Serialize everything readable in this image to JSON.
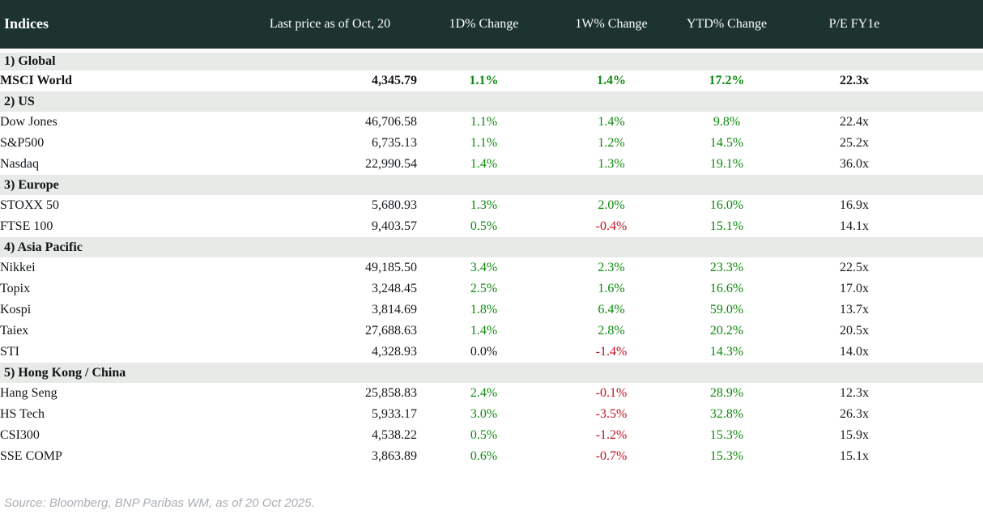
{
  "table": {
    "columns": [
      "Indices",
      "Last price as of Oct, 20",
      "1D% Change",
      "1W% Change",
      "YTD% Change",
      "P/E FY1e"
    ],
    "sections": [
      {
        "label": "1) Global",
        "rows": [
          {
            "name": "MSCI World",
            "bold": true,
            "price": "4,345.79",
            "d1": "1.1%",
            "w1": "1.4%",
            "ytd": "17.2%",
            "pe": "22.3x"
          }
        ]
      },
      {
        "label": "2) US",
        "rows": [
          {
            "name": "Dow Jones",
            "price": "46,706.58",
            "d1": "1.1%",
            "w1": "1.4%",
            "ytd": "9.8%",
            "pe": "22.4x"
          },
          {
            "name": "S&P500",
            "price": "6,735.13",
            "d1": "1.1%",
            "w1": "1.2%",
            "ytd": "14.5%",
            "pe": "25.2x"
          },
          {
            "name": "Nasdaq",
            "price": "22,990.54",
            "d1": "1.4%",
            "w1": "1.3%",
            "ytd": "19.1%",
            "pe": "36.0x"
          }
        ]
      },
      {
        "label": "3) Europe",
        "rows": [
          {
            "name": "STOXX 50",
            "price": "5,680.93",
            "d1": "1.3%",
            "w1": "2.0%",
            "ytd": "16.0%",
            "pe": "16.9x"
          },
          {
            "name": "FTSE 100",
            "price": "9,403.57",
            "d1": "0.5%",
            "w1": "-0.4%",
            "ytd": "15.1%",
            "pe": "14.1x"
          }
        ]
      },
      {
        "label": "4) Asia Pacific",
        "rows": [
          {
            "name": "Nikkei",
            "price": "49,185.50",
            "d1": "3.4%",
            "w1": "2.3%",
            "ytd": "23.3%",
            "pe": "22.5x"
          },
          {
            "name": "Topix",
            "price": "3,248.45",
            "d1": "2.5%",
            "w1": "1.6%",
            "ytd": "16.6%",
            "pe": "17.0x"
          },
          {
            "name": "Kospi",
            "price": "3,814.69",
            "d1": "1.8%",
            "w1": "6.4%",
            "ytd": "59.0%",
            "pe": "13.7x"
          },
          {
            "name": "Taiex",
            "price": "27,688.63",
            "d1": "1.4%",
            "w1": "2.8%",
            "ytd": "20.2%",
            "pe": "20.5x"
          },
          {
            "name": "STI",
            "price": "4,328.93",
            "d1": "0.0%",
            "w1": "-1.4%",
            "ytd": "14.3%",
            "pe": "14.0x"
          }
        ]
      },
      {
        "label": "5) Hong Kong / China",
        "rows": [
          {
            "name": "Hang Seng",
            "price": "25,858.83",
            "d1": "2.4%",
            "w1": "-0.1%",
            "ytd": "28.9%",
            "pe": "12.3x"
          },
          {
            "name": "HS Tech",
            "price": "5,933.17",
            "d1": "3.0%",
            "w1": "-3.5%",
            "ytd": "32.8%",
            "pe": "26.3x"
          },
          {
            "name": "CSI300",
            "price": "4,538.22",
            "d1": "0.5%",
            "w1": "-1.2%",
            "ytd": "15.3%",
            "pe": "15.9x"
          },
          {
            "name": "SSE COMP",
            "price": "3,863.89",
            "d1": "0.6%",
            "w1": "-0.7%",
            "ytd": "15.3%",
            "pe": "15.1x"
          }
        ]
      }
    ]
  },
  "footer": {
    "source": "Source: Bloomberg, BNP Paribas WM, as of 20 Oct 2025."
  },
  "colors": {
    "header_bg": "#1c332e",
    "header_text": "#ffffff",
    "section_bg": "#e8eae7",
    "positive": "#0e8a0e",
    "negative": "#c1101f",
    "neutral": "#14181c",
    "source_text": "#a9aeb5"
  },
  "chart_data": {
    "type": "table",
    "title": "Indices",
    "columns": [
      "Indices",
      "Last price as of Oct, 20",
      "1D% Change",
      "1W% Change",
      "YTD% Change",
      "P/E FY1e"
    ],
    "rows": [
      {
        "section": "1) Global",
        "index": "MSCI World",
        "last_price": 4345.79,
        "d1_pct": 1.1,
        "w1_pct": 1.4,
        "ytd_pct": 17.2,
        "pe_fy1e": 22.3
      },
      {
        "section": "2) US",
        "index": "Dow Jones",
        "last_price": 46706.58,
        "d1_pct": 1.1,
        "w1_pct": 1.4,
        "ytd_pct": 9.8,
        "pe_fy1e": 22.4
      },
      {
        "section": "2) US",
        "index": "S&P500",
        "last_price": 6735.13,
        "d1_pct": 1.1,
        "w1_pct": 1.2,
        "ytd_pct": 14.5,
        "pe_fy1e": 25.2
      },
      {
        "section": "2) US",
        "index": "Nasdaq",
        "last_price": 22990.54,
        "d1_pct": 1.4,
        "w1_pct": 1.3,
        "ytd_pct": 19.1,
        "pe_fy1e": 36.0
      },
      {
        "section": "3) Europe",
        "index": "STOXX 50",
        "last_price": 5680.93,
        "d1_pct": 1.3,
        "w1_pct": 2.0,
        "ytd_pct": 16.0,
        "pe_fy1e": 16.9
      },
      {
        "section": "3) Europe",
        "index": "FTSE 100",
        "last_price": 9403.57,
        "d1_pct": 0.5,
        "w1_pct": -0.4,
        "ytd_pct": 15.1,
        "pe_fy1e": 14.1
      },
      {
        "section": "4) Asia Pacific",
        "index": "Nikkei",
        "last_price": 49185.5,
        "d1_pct": 3.4,
        "w1_pct": 2.3,
        "ytd_pct": 23.3,
        "pe_fy1e": 22.5
      },
      {
        "section": "4) Asia Pacific",
        "index": "Topix",
        "last_price": 3248.45,
        "d1_pct": 2.5,
        "w1_pct": 1.6,
        "ytd_pct": 16.6,
        "pe_fy1e": 17.0
      },
      {
        "section": "4) Asia Pacific",
        "index": "Kospi",
        "last_price": 3814.69,
        "d1_pct": 1.8,
        "w1_pct": 6.4,
        "ytd_pct": 59.0,
        "pe_fy1e": 13.7
      },
      {
        "section": "4) Asia Pacific",
        "index": "Taiex",
        "last_price": 27688.63,
        "d1_pct": 1.4,
        "w1_pct": 2.8,
        "ytd_pct": 20.2,
        "pe_fy1e": 20.5
      },
      {
        "section": "4) Asia Pacific",
        "index": "STI",
        "last_price": 4328.93,
        "d1_pct": 0.0,
        "w1_pct": -1.4,
        "ytd_pct": 14.3,
        "pe_fy1e": 14.0
      },
      {
        "section": "5) Hong Kong / China",
        "index": "Hang Seng",
        "last_price": 25858.83,
        "d1_pct": 2.4,
        "w1_pct": -0.1,
        "ytd_pct": 28.9,
        "pe_fy1e": 12.3
      },
      {
        "section": "5) Hong Kong / China",
        "index": "HS Tech",
        "last_price": 5933.17,
        "d1_pct": 3.0,
        "w1_pct": -3.5,
        "ytd_pct": 32.8,
        "pe_fy1e": 26.3
      },
      {
        "section": "5) Hong Kong / China",
        "index": "CSI300",
        "last_price": 4538.22,
        "d1_pct": 0.5,
        "w1_pct": -1.2,
        "ytd_pct": 15.3,
        "pe_fy1e": 15.9
      },
      {
        "section": "5) Hong Kong / China",
        "index": "SSE COMP",
        "last_price": 3863.89,
        "d1_pct": 0.6,
        "w1_pct": -0.7,
        "ytd_pct": 15.3,
        "pe_fy1e": 15.1
      }
    ]
  }
}
